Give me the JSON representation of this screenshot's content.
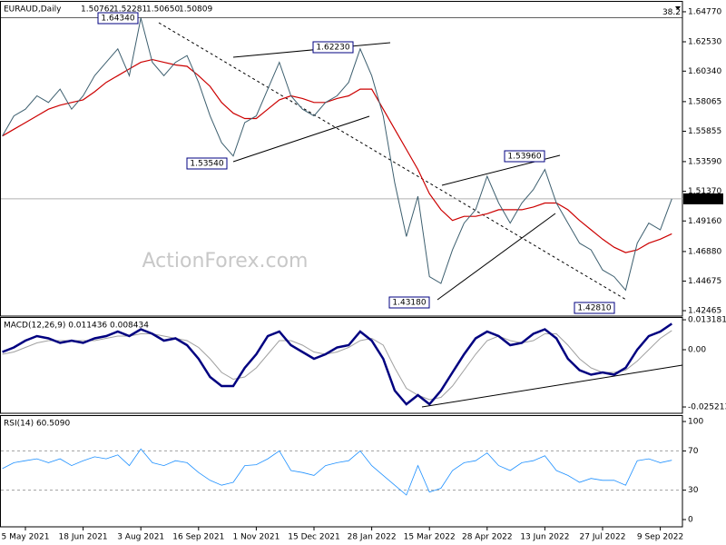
{
  "header": {
    "symbol": "EURAUD,Daily",
    "ohlc": [
      "1.50762",
      "1.52281",
      "1.50650",
      "1.50809"
    ]
  },
  "watermark": "ActionForex.com",
  "xticks": [
    {
      "value": 2,
      "label": "5 May 2021"
    },
    {
      "value": 7,
      "label": "18 Jun 2021"
    },
    {
      "value": 12,
      "label": "3 Aug 2021"
    },
    {
      "value": 17,
      "label": "16 Sep 2021"
    },
    {
      "value": 22,
      "label": "1 Nov 2021"
    },
    {
      "value": 27,
      "label": "15 Dec 2021"
    },
    {
      "value": 32,
      "label": "28 Jan 2022"
    },
    {
      "value": 37,
      "label": "15 Mar 2022"
    },
    {
      "value": 42,
      "label": "28 Apr 2022"
    },
    {
      "value": 47,
      "label": "13 Jun 2022"
    },
    {
      "value": 52,
      "label": "27 Jul 2022"
    },
    {
      "value": 57,
      "label": "9 Sep 2022"
    }
  ],
  "chart_data": [
    {
      "type": "line",
      "ylim": [
        1.4206,
        1.6558
      ],
      "yticks": [
        {
          "value": 1.6477,
          "label": "1.64770"
        },
        {
          "value": 1.6253,
          "label": "1.62530"
        },
        {
          "value": 1.6034,
          "label": "1.60340"
        },
        {
          "value": 1.58065,
          "label": "1.58065"
        },
        {
          "value": 1.55855,
          "label": "1.55855"
        },
        {
          "value": 1.5359,
          "label": "1.53590"
        },
        {
          "value": 1.5137,
          "label": "1.51370"
        },
        {
          "value": 1.4916,
          "label": "1.49160"
        },
        {
          "value": 1.4688,
          "label": "1.46880"
        },
        {
          "value": 1.44675,
          "label": "1.44675"
        },
        {
          "value": 1.42465,
          "label": "1.42465"
        }
      ],
      "last_price": {
        "value": 1.50809,
        "label": "1.50809"
      },
      "fib": {
        "value": 1.6434,
        "label": "38.2"
      },
      "annotations": [
        "1.64340",
        "1.62230",
        "1.53540",
        "1.53960",
        "1.43180",
        "1.42810"
      ],
      "series": [
        {
          "name": "EURAUD",
          "color": "#3d5f6f",
          "values": [
            1.555,
            1.57,
            1.575,
            1.585,
            1.58,
            1.59,
            1.575,
            1.585,
            1.6,
            1.61,
            1.62,
            1.6,
            1.643,
            1.61,
            1.6,
            1.61,
            1.615,
            1.595,
            1.57,
            1.55,
            1.54,
            1.565,
            1.57,
            1.59,
            1.61,
            1.585,
            1.575,
            1.57,
            1.58,
            1.585,
            1.595,
            1.62,
            1.6,
            1.57,
            1.52,
            1.48,
            1.51,
            1.45,
            1.445,
            1.47,
            1.49,
            1.5,
            1.525,
            1.505,
            1.49,
            1.505,
            1.515,
            1.53,
            1.505,
            1.49,
            1.475,
            1.47,
            1.455,
            1.45,
            1.44,
            1.475,
            1.49,
            1.485,
            1.50809
          ]
        },
        {
          "name": "MA",
          "color": "#cc0000",
          "values": [
            1.555,
            1.56,
            1.565,
            1.57,
            1.575,
            1.578,
            1.58,
            1.582,
            1.588,
            1.595,
            1.6,
            1.605,
            1.61,
            1.612,
            1.61,
            1.608,
            1.607,
            1.6,
            1.592,
            1.58,
            1.572,
            1.568,
            1.568,
            1.575,
            1.582,
            1.585,
            1.583,
            1.58,
            1.58,
            1.583,
            1.585,
            1.59,
            1.59,
            1.575,
            1.56,
            1.545,
            1.53,
            1.512,
            1.5,
            1.492,
            1.495,
            1.495,
            1.497,
            1.5,
            1.5,
            1.5,
            1.502,
            1.505,
            1.505,
            1.5,
            1.492,
            1.485,
            1.478,
            1.472,
            1.468,
            1.47,
            1.475,
            1.478,
            1.482
          ]
        }
      ]
    },
    {
      "type": "line",
      "title": "MACD(12,26,9) 0.011436 0.008434",
      "ylim": [
        -0.028,
        0.014
      ],
      "yticks": [
        0.013181,
        {
          "value": 0,
          "label": "0.00"
        },
        -0.025213
      ],
      "series": [
        {
          "name": "MACD",
          "color": "#000080",
          "values": [
            -0.001,
            0.001,
            0.004,
            0.006,
            0.005,
            0.003,
            0.004,
            0.003,
            0.005,
            0.006,
            0.008,
            0.006,
            0.009,
            0.007,
            0.004,
            0.005,
            0.002,
            -0.004,
            -0.012,
            -0.016,
            -0.016,
            -0.008,
            -0.002,
            0.006,
            0.008,
            0.002,
            -0.001,
            -0.004,
            -0.002,
            0.001,
            0.002,
            0.008,
            0.004,
            -0.004,
            -0.018,
            -0.024,
            -0.02,
            -0.024,
            -0.018,
            -0.01,
            -0.002,
            0.005,
            0.008,
            0.006,
            0.002,
            0.003,
            0.007,
            0.009,
            0.005,
            -0.004,
            -0.009,
            -0.011,
            -0.01,
            -0.011,
            -0.008,
            0.0,
            0.006,
            0.008,
            0.011436
          ]
        },
        {
          "name": "Signal",
          "color": "#a0a0a0",
          "values": [
            -0.002,
            -0.001,
            0.001,
            0.003,
            0.004,
            0.004,
            0.004,
            0.004,
            0.004,
            0.005,
            0.006,
            0.006,
            0.007,
            0.007,
            0.006,
            0.005,
            0.004,
            0.001,
            -0.004,
            -0.01,
            -0.013,
            -0.012,
            -0.008,
            -0.002,
            0.004,
            0.004,
            0.002,
            -0.001,
            -0.002,
            -0.001,
            0.001,
            0.004,
            0.005,
            0.002,
            -0.008,
            -0.017,
            -0.02,
            -0.022,
            -0.021,
            -0.016,
            -0.009,
            -0.002,
            0.004,
            0.006,
            0.004,
            0.003,
            0.004,
            0.007,
            0.007,
            0.002,
            -0.004,
            -0.008,
            -0.01,
            -0.01,
            -0.009,
            -0.005,
            0.0,
            0.005,
            0.008434
          ]
        }
      ]
    },
    {
      "type": "line",
      "title": "RSI(14) 60.5090",
      "ylim": [
        -7.4,
        105.6
      ],
      "yticks": [
        100,
        70,
        30,
        0
      ],
      "levels": [
        70,
        30
      ],
      "series": [
        {
          "name": "RSI",
          "color": "#1e90ff",
          "values": [
            52,
            58,
            60,
            62,
            58,
            62,
            55,
            60,
            64,
            62,
            66,
            55,
            72,
            58,
            55,
            60,
            58,
            48,
            40,
            35,
            38,
            55,
            56,
            62,
            70,
            50,
            48,
            45,
            55,
            58,
            60,
            70,
            55,
            45,
            35,
            25,
            55,
            28,
            32,
            50,
            58,
            60,
            68,
            55,
            50,
            58,
            60,
            65,
            50,
            45,
            38,
            42,
            40,
            40,
            35,
            60,
            62,
            58,
            60.509
          ]
        }
      ]
    }
  ]
}
